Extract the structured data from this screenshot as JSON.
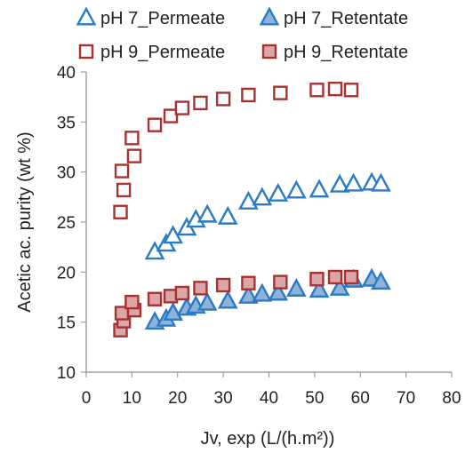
{
  "chart_data": {
    "type": "scatter",
    "xlabel": "Jv, exp (L/(h.m²))",
    "ylabel": "Acetic ac. purity (wt %)",
    "xlim": [
      0,
      80
    ],
    "ylim": [
      10,
      40
    ],
    "xticks": [
      "0",
      "10",
      "20",
      "30",
      "40",
      "50",
      "60",
      "70",
      "80"
    ],
    "yticks": [
      "10",
      "15",
      "20",
      "25",
      "30",
      "35",
      "40"
    ],
    "grid": false,
    "legend_position": "top",
    "series": [
      {
        "name": "pH 7_Permeate",
        "marker": "triangle-open",
        "color": "#2a7bc4",
        "points": [
          [
            15,
            22.0
          ],
          [
            17.5,
            22.8
          ],
          [
            19,
            23.6
          ],
          [
            22,
            24.4
          ],
          [
            24,
            25.2
          ],
          [
            26.5,
            25.7
          ],
          [
            31,
            25.5
          ],
          [
            35.5,
            27.0
          ],
          [
            38.5,
            27.4
          ],
          [
            42,
            27.8
          ],
          [
            46,
            28.1
          ],
          [
            51,
            28.2
          ],
          [
            55.5,
            28.7
          ],
          [
            58.5,
            28.8
          ],
          [
            62.5,
            28.9
          ],
          [
            64.5,
            28.8
          ]
        ]
      },
      {
        "name": "pH 7_Retentate",
        "marker": "triangle-filled",
        "color": "#2a7bc4",
        "fill": "#8fb2d9",
        "points": [
          [
            15,
            15.0
          ],
          [
            17.5,
            15.3
          ],
          [
            19,
            15.9
          ],
          [
            22,
            16.4
          ],
          [
            24,
            16.6
          ],
          [
            26.5,
            16.9
          ],
          [
            31,
            17.1
          ],
          [
            35.5,
            17.6
          ],
          [
            38.5,
            17.8
          ],
          [
            42,
            17.9
          ],
          [
            46,
            18.3
          ],
          [
            51,
            18.2
          ],
          [
            55.5,
            18.4
          ],
          [
            58.5,
            19.2
          ],
          [
            62.5,
            19.3
          ],
          [
            64.5,
            19.0
          ]
        ]
      },
      {
        "name": "pH 9_Permeate",
        "marker": "square-open",
        "color": "#a83232",
        "points": [
          [
            7.5,
            26.0
          ],
          [
            8.2,
            28.2
          ],
          [
            7.8,
            30.1
          ],
          [
            10.5,
            31.6
          ],
          [
            10,
            33.4
          ],
          [
            15,
            34.7
          ],
          [
            18.5,
            35.6
          ],
          [
            21,
            36.4
          ],
          [
            25,
            36.9
          ],
          [
            30,
            37.3
          ],
          [
            35.5,
            37.7
          ],
          [
            42.5,
            37.9
          ],
          [
            50.5,
            38.2
          ],
          [
            54.5,
            38.3
          ],
          [
            58,
            38.2
          ]
        ]
      },
      {
        "name": "pH 9_Retentate",
        "marker": "square-filled",
        "color": "#a83232",
        "fill": "#dca6a6",
        "points": [
          [
            7.5,
            14.2
          ],
          [
            8.2,
            15.1
          ],
          [
            7.8,
            15.9
          ],
          [
            10.5,
            16.2
          ],
          [
            10,
            17.0
          ],
          [
            15,
            17.3
          ],
          [
            18.5,
            17.6
          ],
          [
            21,
            17.9
          ],
          [
            25,
            18.4
          ],
          [
            30,
            18.7
          ],
          [
            35.5,
            18.9
          ],
          [
            42.5,
            19.0
          ],
          [
            50.5,
            19.3
          ],
          [
            54.5,
            19.5
          ],
          [
            58,
            19.5
          ]
        ]
      }
    ]
  }
}
